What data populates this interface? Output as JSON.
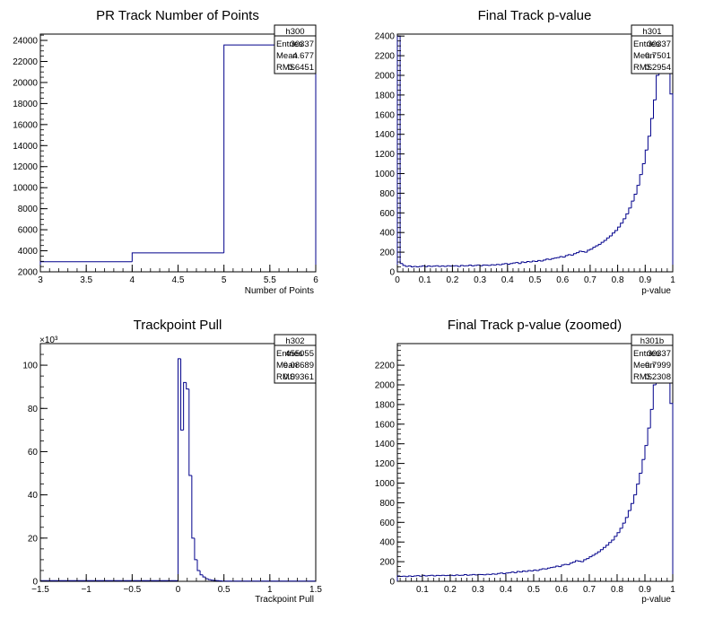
{
  "colors": {
    "line": "#00008b",
    "axis": "#000000",
    "background": "#ffffff"
  },
  "chart_data": [
    {
      "type": "bar",
      "style": "step-histogram",
      "title": "PR Track Number of Points",
      "xlabel": "Number of Points",
      "ylabel": "",
      "xlim": [
        3,
        6
      ],
      "ylim": [
        2000,
        24600
      ],
      "xticks": [
        3,
        3.5,
        4,
        4.5,
        5,
        5.5,
        6
      ],
      "xtick_labels": [
        "3",
        "3.5",
        "4",
        "4.5",
        "5",
        "5.5",
        "6"
      ],
      "yticks": [
        2000,
        4000,
        6000,
        8000,
        10000,
        12000,
        14000,
        16000,
        18000,
        20000,
        22000,
        24000
      ],
      "ytick_labels": [
        "2000",
        "4000",
        "6000",
        "8000",
        "10000",
        "12000",
        "14000",
        "16000",
        "18000",
        "20000",
        "22000",
        "24000"
      ],
      "y_exponent": "",
      "bin_edges": [
        3,
        4,
        5,
        6
      ],
      "values": [
        2960,
        3800,
        23570
      ],
      "stats": {
        "name": "h300",
        "rows": [
          [
            "Entries",
            "30337"
          ],
          [
            "Mean",
            "4.677"
          ],
          [
            "RMS",
            "0.6451"
          ]
        ]
      }
    },
    {
      "type": "bar",
      "style": "step-histogram",
      "title": "Final Track p-value",
      "xlabel": "p-value",
      "ylabel": "",
      "xlim": [
        0,
        1
      ],
      "ylim": [
        0,
        2420
      ],
      "xticks": [
        0,
        0.1,
        0.2,
        0.3,
        0.4,
        0.5,
        0.6,
        0.7,
        0.8,
        0.9,
        1
      ],
      "xtick_labels": [
        "0",
        "0.1",
        "0.2",
        "0.3",
        "0.4",
        "0.5",
        "0.6",
        "0.7",
        "0.8",
        "0.9",
        "1"
      ],
      "yticks": [
        0,
        200,
        400,
        600,
        800,
        1000,
        1200,
        1400,
        1600,
        1800,
        2000,
        2200,
        2400
      ],
      "ytick_labels": [
        "0",
        "200",
        "400",
        "600",
        "800",
        "1000",
        "1200",
        "1400",
        "1600",
        "1800",
        "2000",
        "2200",
        "2400"
      ],
      "y_exponent": "",
      "bin_edges": [
        0,
        0.01,
        0.02,
        0.03,
        0.04,
        0.05,
        0.06,
        0.07,
        0.08,
        0.09,
        0.1,
        0.11,
        0.12,
        0.13,
        0.14,
        0.15,
        0.16,
        0.17,
        0.18,
        0.19,
        0.2,
        0.21,
        0.22,
        0.23,
        0.24,
        0.25,
        0.26,
        0.27,
        0.28,
        0.29,
        0.3,
        0.31,
        0.32,
        0.33,
        0.34,
        0.35,
        0.36,
        0.37,
        0.38,
        0.39,
        0.4,
        0.41,
        0.42,
        0.43,
        0.44,
        0.45,
        0.46,
        0.47,
        0.48,
        0.49,
        0.5,
        0.51,
        0.52,
        0.53,
        0.54,
        0.55,
        0.56,
        0.57,
        0.58,
        0.59,
        0.6,
        0.61,
        0.62,
        0.63,
        0.64,
        0.65,
        0.66,
        0.67,
        0.68,
        0.69,
        0.7,
        0.71,
        0.72,
        0.73,
        0.74,
        0.75,
        0.76,
        0.77,
        0.78,
        0.79,
        0.8,
        0.81,
        0.82,
        0.83,
        0.84,
        0.85,
        0.86,
        0.87,
        0.88,
        0.89,
        0.9,
        0.91,
        0.92,
        0.93,
        0.94,
        0.95,
        0.96,
        0.97,
        0.98,
        0.99,
        1
      ],
      "values": [
        2400,
        85,
        65,
        55,
        60,
        50,
        55,
        50,
        55,
        60,
        52,
        60,
        55,
        58,
        62,
        55,
        60,
        55,
        62,
        58,
        60,
        62,
        55,
        65,
        60,
        62,
        68,
        60,
        65,
        70,
        62,
        70,
        68,
        65,
        72,
        70,
        75,
        72,
        80,
        85,
        78,
        85,
        90,
        95,
        85,
        100,
        95,
        105,
        100,
        110,
        105,
        115,
        110,
        120,
        130,
        125,
        135,
        140,
        145,
        155,
        150,
        165,
        175,
        170,
        185,
        195,
        210,
        205,
        200,
        220,
        230,
        250,
        265,
        280,
        300,
        320,
        345,
        365,
        395,
        420,
        455,
        495,
        540,
        590,
        650,
        720,
        790,
        880,
        990,
        1100,
        1240,
        1380,
        1560,
        1750,
        2000,
        2300,
        2400,
        2400,
        2400,
        1810
      ],
      "stats": {
        "name": "h301",
        "rows": [
          [
            "Entries",
            "30337"
          ],
          [
            "Mean",
            "0.7501"
          ],
          [
            "RMS",
            "0.2954"
          ]
        ]
      }
    },
    {
      "type": "bar",
      "style": "step-histogram",
      "title": "Trackpoint Pull",
      "xlabel": "Trackpoint Pull",
      "ylabel": "",
      "xlim": [
        -1.5,
        1.5
      ],
      "ylim": [
        0,
        110
      ],
      "xticks": [
        -1.5,
        -1,
        -0.5,
        0,
        0.5,
        1,
        1.5
      ],
      "xtick_labels": [
        "−1.5",
        "−1",
        "−0.5",
        "0",
        "0.5",
        "1",
        "1.5"
      ],
      "yticks": [
        0,
        20,
        40,
        60,
        80,
        100
      ],
      "ytick_labels": [
        "0",
        "20",
        "40",
        "60",
        "80",
        "100"
      ],
      "y_exponent": "×10³",
      "bin_edges": [
        -1.5,
        0.0,
        0.03,
        0.06,
        0.09,
        0.12,
        0.15,
        0.18,
        0.21,
        0.24,
        0.27,
        0.3,
        0.33,
        0.36,
        0.39,
        0.42,
        0.45,
        0.48,
        1.5
      ],
      "values": [
        0.3,
        103,
        70,
        92,
        89,
        49,
        20,
        10,
        5,
        3,
        2,
        1.2,
        0.8,
        0.5,
        0.4,
        0.3,
        0.2,
        0.1
      ],
      "stats": {
        "name": "h302",
        "rows": [
          [
            "Entries",
            "455055"
          ],
          [
            "Mean",
            "0.08689"
          ],
          [
            "RMS",
            "0.09361"
          ]
        ]
      }
    },
    {
      "type": "bar",
      "style": "step-histogram",
      "title": "Final Track p-value (zoomed)",
      "xlabel": "p-value",
      "ylabel": "",
      "xlim": [
        0.01,
        1
      ],
      "ylim": [
        0,
        2420
      ],
      "xticks": [
        0.1,
        0.2,
        0.3,
        0.4,
        0.5,
        0.6,
        0.7,
        0.8,
        0.9,
        1
      ],
      "xtick_labels": [
        "0.1",
        "0.2",
        "0.3",
        "0.4",
        "0.5",
        "0.6",
        "0.7",
        "0.8",
        "0.9",
        "1"
      ],
      "yticks": [
        0,
        200,
        400,
        600,
        800,
        1000,
        1200,
        1400,
        1600,
        1800,
        2000,
        2200
      ],
      "ytick_labels": [
        "0",
        "200",
        "400",
        "600",
        "800",
        "1000",
        "1200",
        "1400",
        "1600",
        "1800",
        "2000",
        "2200"
      ],
      "y_exponent": "",
      "bin_edges": [
        0.01,
        0.02,
        0.03,
        0.04,
        0.05,
        0.06,
        0.07,
        0.08,
        0.09,
        0.1,
        0.11,
        0.12,
        0.13,
        0.14,
        0.15,
        0.16,
        0.17,
        0.18,
        0.19,
        0.2,
        0.21,
        0.22,
        0.23,
        0.24,
        0.25,
        0.26,
        0.27,
        0.28,
        0.29,
        0.3,
        0.31,
        0.32,
        0.33,
        0.34,
        0.35,
        0.36,
        0.37,
        0.38,
        0.39,
        0.4,
        0.41,
        0.42,
        0.43,
        0.44,
        0.45,
        0.46,
        0.47,
        0.48,
        0.49,
        0.5,
        0.51,
        0.52,
        0.53,
        0.54,
        0.55,
        0.56,
        0.57,
        0.58,
        0.59,
        0.6,
        0.61,
        0.62,
        0.63,
        0.64,
        0.65,
        0.66,
        0.67,
        0.68,
        0.69,
        0.7,
        0.71,
        0.72,
        0.73,
        0.74,
        0.75,
        0.76,
        0.77,
        0.78,
        0.79,
        0.8,
        0.81,
        0.82,
        0.83,
        0.84,
        0.85,
        0.86,
        0.87,
        0.88,
        0.89,
        0.9,
        0.91,
        0.92,
        0.93,
        0.94,
        0.95,
        0.96,
        0.97,
        0.98,
        0.99,
        1
      ],
      "values": [
        55,
        50,
        52,
        48,
        55,
        50,
        55,
        58,
        52,
        60,
        55,
        58,
        62,
        55,
        60,
        58,
        62,
        58,
        60,
        62,
        58,
        65,
        60,
        62,
        68,
        62,
        65,
        70,
        65,
        70,
        68,
        66,
        72,
        70,
        75,
        72,
        80,
        85,
        78,
        85,
        88,
        95,
        88,
        100,
        95,
        105,
        100,
        110,
        106,
        115,
        110,
        120,
        128,
        125,
        135,
        140,
        145,
        155,
        150,
        165,
        172,
        170,
        185,
        195,
        210,
        205,
        200,
        220,
        232,
        250,
        265,
        282,
        300,
        322,
        345,
        368,
        395,
        420,
        458,
        495,
        540,
        592,
        650,
        720,
        792,
        880,
        990,
        1100,
        1240,
        1382,
        1560,
        1750,
        2000,
        2300,
        2420,
        2420,
        2420,
        2420,
        1810
      ],
      "stats": {
        "name": "h301b",
        "rows": [
          [
            "Entries",
            "30337"
          ],
          [
            "Mean",
            "0.7999"
          ],
          [
            "RMS",
            "0.2308"
          ]
        ]
      }
    }
  ]
}
